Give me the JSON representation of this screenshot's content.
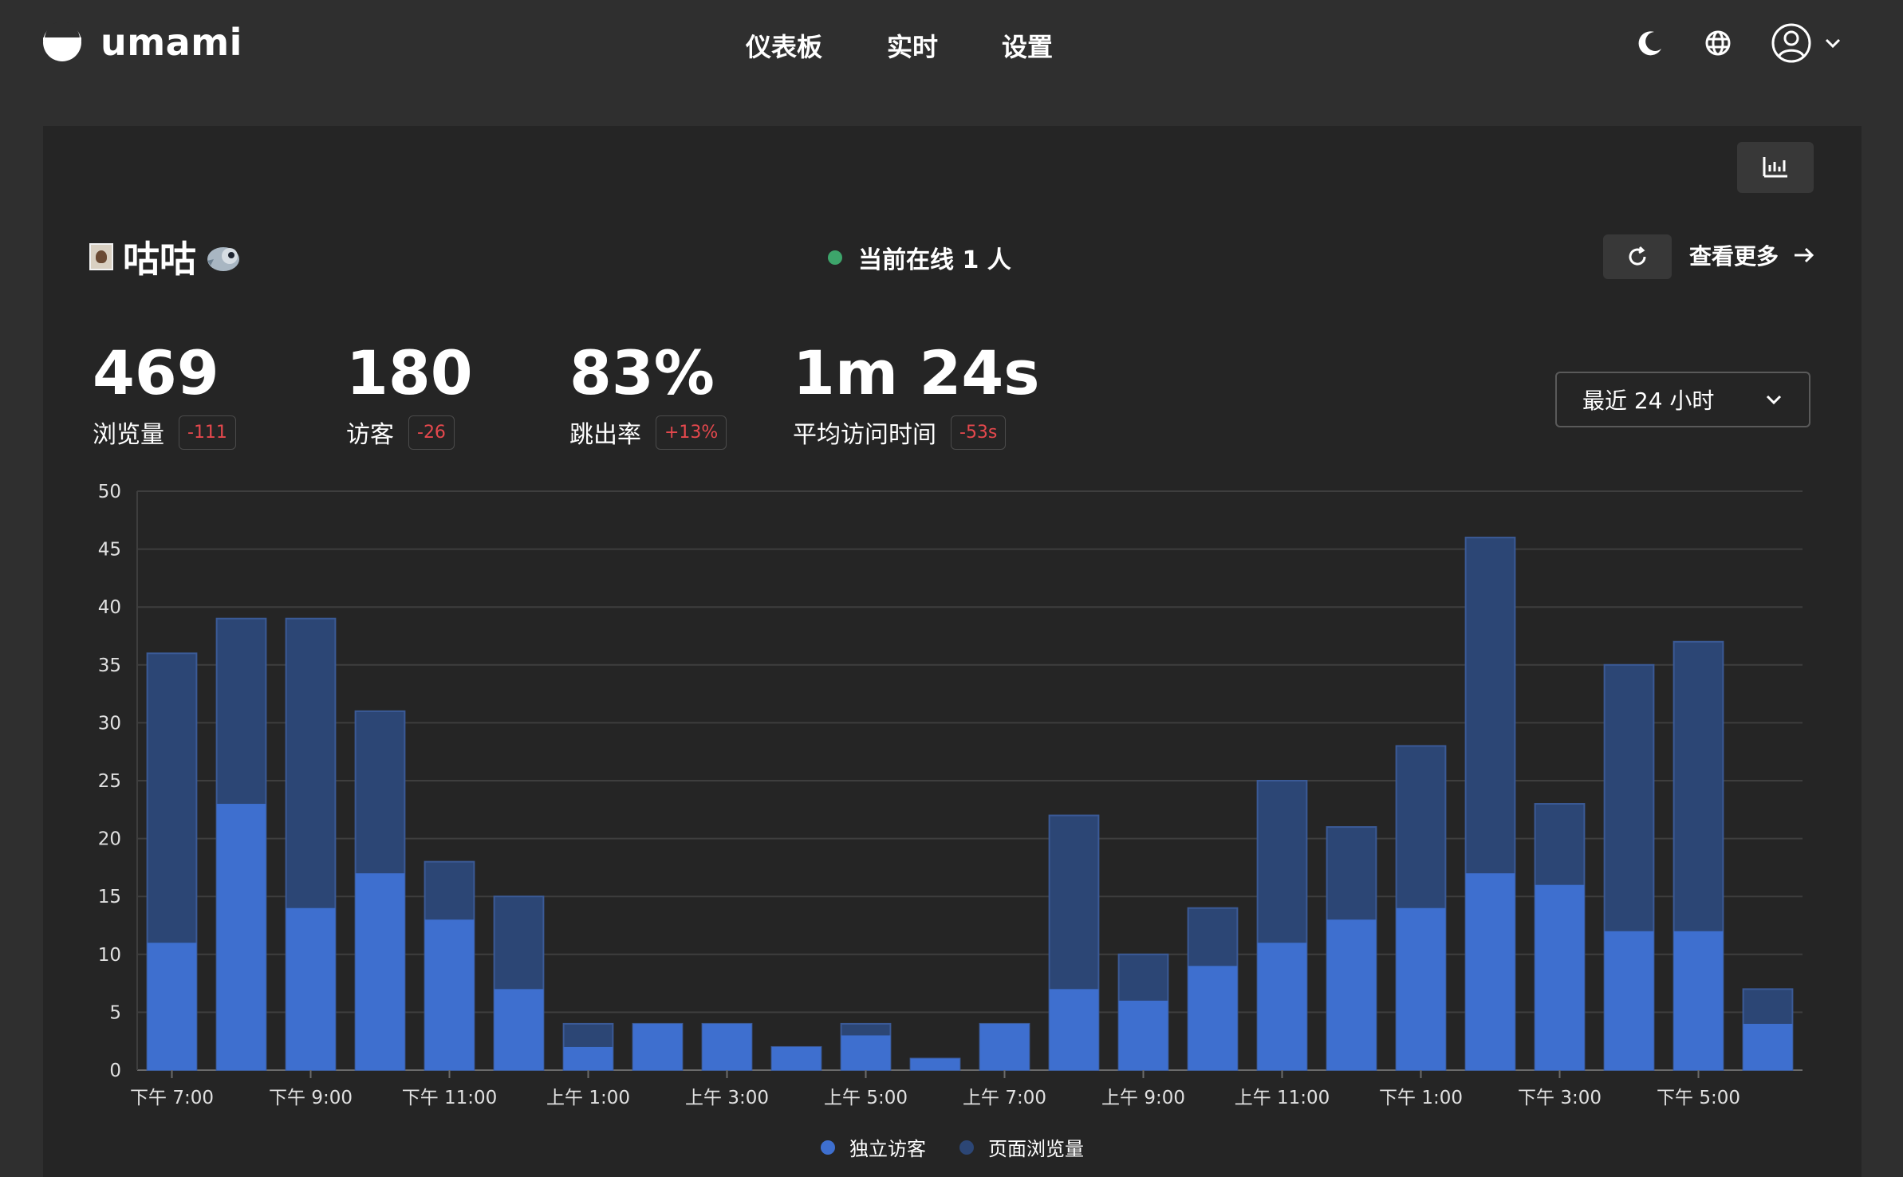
{
  "header": {
    "app_name": "umami",
    "nav": [
      {
        "label": "仪表板"
      },
      {
        "label": "实时"
      },
      {
        "label": "设置"
      }
    ],
    "icons": {
      "theme": "moon-icon",
      "language": "globe-icon",
      "profile": "user-icon",
      "profile_menu": "chevron-down-icon"
    }
  },
  "site": {
    "name": "咕咕",
    "online_text": "当前在线 1 人",
    "view_more_label": "查看更多",
    "date_range": "最近 24 小时"
  },
  "metrics": [
    {
      "value": "469",
      "label": "浏览量",
      "change": "-111"
    },
    {
      "value": "180",
      "label": "访客",
      "change": "-26"
    },
    {
      "value": "83%",
      "label": "跳出率",
      "change": "+13%"
    },
    {
      "value": "1m 24s",
      "label": "平均访问时间",
      "change": "-53s"
    }
  ],
  "colors": {
    "visitors": "#3e6fcf",
    "pageviews": "#2c4675",
    "online": "#3da56b",
    "negative_change": "#e5484d"
  },
  "chart_data": {
    "type": "bar",
    "stacked_overlay": true,
    "x_tick_labels": [
      "下午 7:00",
      "下午 9:00",
      "下午 11:00",
      "上午 1:00",
      "上午 3:00",
      "上午 5:00",
      "上午 7:00",
      "上午 9:00",
      "上午 11:00",
      "下午 1:00",
      "下午 3:00",
      "下午 5:00"
    ],
    "y_ticks": [
      0,
      5,
      10,
      15,
      20,
      25,
      30,
      35,
      40,
      45,
      50
    ],
    "ylim": [
      0,
      50
    ],
    "grid": true,
    "legend_position": "bottom-center",
    "series": [
      {
        "name": "独立访客",
        "values": [
          11,
          23,
          14,
          17,
          13,
          7,
          2,
          4,
          4,
          2,
          3,
          1,
          4,
          7,
          6,
          9,
          11,
          13,
          14,
          17,
          16,
          12,
          12,
          4
        ]
      },
      {
        "name": "页面浏览量",
        "values": [
          36,
          39,
          39,
          31,
          18,
          15,
          4,
          4,
          4,
          2,
          4,
          1,
          4,
          22,
          10,
          14,
          25,
          21,
          28,
          46,
          23,
          35,
          37,
          7
        ]
      }
    ]
  }
}
